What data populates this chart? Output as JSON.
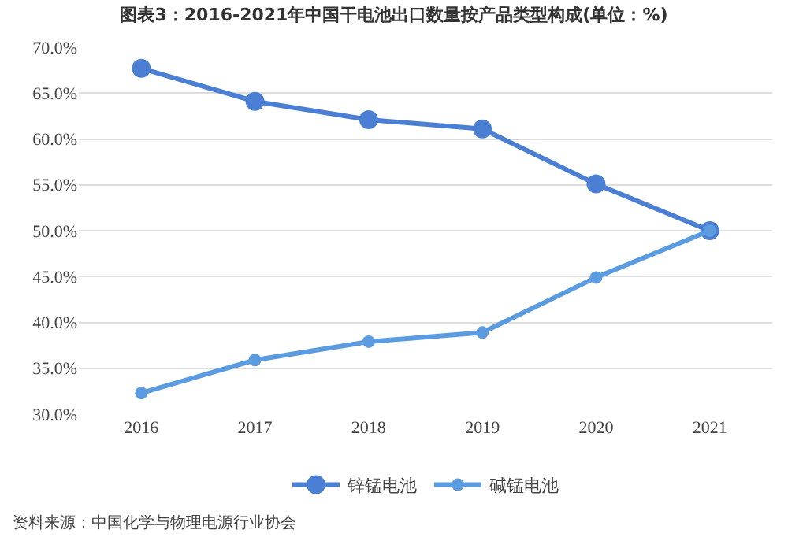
{
  "chart_data": {
    "type": "line",
    "title": "图表3：2016-2021年中国干电池出口数量按产品类型构成(单位：%)",
    "categories": [
      "2016",
      "2017",
      "2018",
      "2019",
      "2020",
      "2021"
    ],
    "series": [
      {
        "name": "锌锰电池",
        "color": "#4a7fd4",
        "values": [
          67.7,
          64.1,
          62.1,
          61.1,
          55.1,
          50.0
        ]
      },
      {
        "name": "碱锰电池",
        "color": "#5b9be0",
        "values": [
          32.3,
          35.9,
          37.9,
          38.9,
          44.9,
          50.0
        ]
      }
    ],
    "ylim": [
      30,
      70
    ],
    "yticks": [
      {
        "value": 30,
        "label": "30.0%"
      },
      {
        "value": 35,
        "label": "35.0%"
      },
      {
        "value": 40,
        "label": "40.0%"
      },
      {
        "value": 45,
        "label": "45.0%"
      },
      {
        "value": 50,
        "label": "50.0%"
      },
      {
        "value": 55,
        "label": "55.0%"
      },
      {
        "value": 60,
        "label": "60.0%"
      },
      {
        "value": 65,
        "label": "65.0%"
      },
      {
        "value": 70,
        "label": "70.0%"
      }
    ],
    "grid": "y",
    "legend": "bottom",
    "marker": "circle",
    "line_style": "solid",
    "annotations": [
      "资料来源：中国化学与物理电源行业协会"
    ]
  }
}
